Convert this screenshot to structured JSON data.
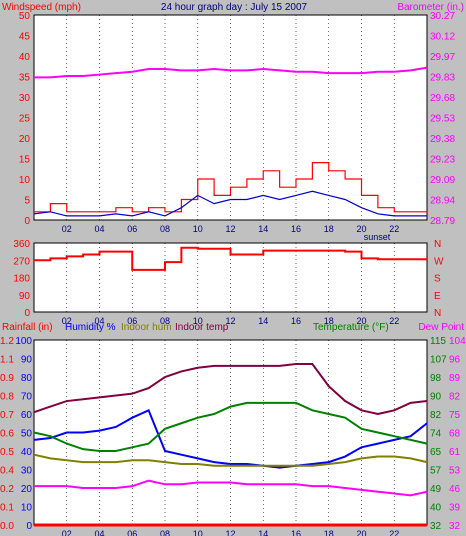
{
  "title": "24 hour graph day : July 15 2007",
  "legend": {
    "windspeed": "Windspeed (mph)",
    "barometer": "Barometer (in.)",
    "rainfall": "Rainfall (in)",
    "humidity": "Humidity %",
    "indoor_hum": "Indoor hum",
    "indoor_temp": "Indoor temp",
    "temperature": "Temperature (°F)",
    "dew_point": "Dew Point",
    "sunset": "sunset"
  },
  "colors": {
    "wind_speed": "#ff0000",
    "wind_avg": "#0000cc",
    "barometer": "#ff00ff",
    "wind_dir": "#ff0000",
    "humidity": "#0000ff",
    "indoor_hum": "#808000",
    "indoor_temp": "#800040",
    "temperature": "#008000",
    "dew_point": "#ff00ff",
    "rainfall": "#ff0000"
  },
  "x_ticks": [
    "02",
    "04",
    "06",
    "08",
    "10",
    "12",
    "14",
    "16",
    "18",
    "20",
    "22"
  ],
  "chart_data": [
    {
      "type": "line",
      "name": "wind_barometer",
      "x": [
        0,
        1,
        2,
        3,
        4,
        5,
        6,
        7,
        8,
        9,
        10,
        11,
        12,
        13,
        14,
        15,
        16,
        17,
        18,
        19,
        20,
        21,
        22,
        23,
        24
      ],
      "y_left_ticks": [
        "0",
        "5",
        "10",
        "15",
        "20",
        "25",
        "30",
        "35",
        "40",
        "45",
        "50"
      ],
      "y_right_ticks": [
        "28.79",
        "28.94",
        "29.09",
        "29.23",
        "29.38",
        "29.53",
        "29.68",
        "29.83",
        "29.97",
        "30.12",
        "30.27"
      ],
      "ylim_left": [
        0,
        50
      ],
      "ylim_right": [
        28.79,
        30.27
      ],
      "series": [
        {
          "name": "Windspeed (mph)",
          "axis": "left",
          "values": [
            2,
            4,
            2,
            2,
            2,
            3,
            2,
            3,
            2,
            5,
            10,
            6,
            8,
            10,
            12,
            8,
            10,
            14,
            12,
            10,
            6,
            3,
            2,
            2,
            2
          ]
        },
        {
          "name": "",
          "axis": "left",
          "values": [
            1.5,
            2,
            1,
            1,
            1,
            1.5,
            1,
            2,
            1,
            3,
            6,
            4,
            5,
            5,
            6,
            5,
            6,
            7,
            6,
            5,
            3,
            1.5,
            1,
            1,
            1
          ]
        },
        {
          "name": "Barometer (in.)",
          "axis": "right",
          "values": [
            29.82,
            29.82,
            29.83,
            29.83,
            29.84,
            29.85,
            29.86,
            29.88,
            29.88,
            29.87,
            29.87,
            29.88,
            29.87,
            29.87,
            29.88,
            29.87,
            29.86,
            29.86,
            29.85,
            29.85,
            29.85,
            29.86,
            29.86,
            29.87,
            29.89
          ]
        }
      ]
    },
    {
      "type": "line",
      "name": "wind_direction",
      "x": [
        0,
        1,
        2,
        3,
        4,
        5,
        6,
        7,
        8,
        9,
        10,
        11,
        12,
        13,
        14,
        15,
        16,
        17,
        18,
        19,
        20,
        21,
        22,
        23,
        24
      ],
      "y_ticks": [
        "360",
        "270",
        "180",
        "90",
        "0"
      ],
      "y_right_ticks": [
        "N",
        "W",
        "S",
        "E",
        "N"
      ],
      "ylim": [
        0,
        360
      ],
      "series": [
        {
          "name": "Wind direction",
          "values": [
            270,
            280,
            290,
            300,
            315,
            315,
            220,
            220,
            260,
            335,
            330,
            330,
            300,
            300,
            320,
            320,
            320,
            320,
            320,
            315,
            280,
            275,
            275,
            275,
            275
          ]
        }
      ]
    },
    {
      "type": "line",
      "name": "temp_humidity",
      "x": [
        0,
        1,
        2,
        3,
        4,
        5,
        6,
        7,
        8,
        9,
        10,
        11,
        12,
        13,
        14,
        15,
        16,
        17,
        18,
        19,
        20,
        21,
        22,
        23,
        24
      ],
      "y_left_ticks": [
        "0",
        "10",
        "20",
        "30",
        "40",
        "50",
        "60",
        "70",
        "80",
        "90",
        "100"
      ],
      "y_rain_ticks": [
        "0.0",
        "0.1",
        "0.2",
        "0.4",
        "0.5",
        "0.6",
        "0.7",
        "0.8",
        "0.9",
        "1.1",
        "1.2"
      ],
      "y_right_ticks_temp": [
        "32",
        "40",
        "49",
        "57",
        "65",
        "74",
        "82",
        "90",
        "98",
        "107",
        "115"
      ],
      "y_right_ticks_dew": [
        "32",
        "39",
        "46",
        "53",
        "61",
        "68",
        "75",
        "82",
        "89",
        "96",
        "104"
      ],
      "ylim_left": [
        0,
        100
      ],
      "series": [
        {
          "name": "Humidity %",
          "values": [
            46,
            47,
            50,
            50,
            51,
            53,
            58,
            62,
            40,
            38,
            36,
            34,
            33,
            33,
            32,
            31,
            32,
            33,
            34,
            37,
            42,
            44,
            46,
            48,
            55
          ]
        },
        {
          "name": "Indoor hum",
          "values": [
            38,
            36,
            35,
            34,
            34,
            34,
            35,
            35,
            34,
            33,
            33,
            32,
            32,
            32,
            32,
            32,
            32,
            32,
            33,
            34,
            36,
            37,
            37,
            36,
            34
          ]
        },
        {
          "name": "Indoor temp",
          "values": [
            61,
            64,
            67,
            68,
            69,
            70,
            71,
            74,
            80,
            83,
            85,
            86,
            86,
            86,
            86,
            86,
            87,
            87,
            75,
            67,
            62,
            60,
            62,
            66,
            67
          ]
        },
        {
          "name": "Temperature (°F)",
          "values": [
            50,
            48,
            44,
            41,
            40,
            40,
            42,
            44,
            52,
            55,
            58,
            60,
            64,
            66,
            66,
            66,
            66,
            62,
            60,
            58,
            52,
            50,
            48,
            46,
            44
          ]
        },
        {
          "name": "Dew Point",
          "values": [
            21,
            21,
            21,
            20,
            20,
            20,
            21,
            24,
            22,
            22,
            23,
            23,
            23,
            22,
            22,
            22,
            22,
            21,
            21,
            20,
            19,
            18,
            17,
            16,
            18
          ]
        },
        {
          "name": "Rainfall (in)",
          "values": [
            0,
            0,
            0,
            0,
            0,
            0,
            0,
            0,
            0,
            0,
            0,
            0,
            0,
            0,
            0,
            0,
            0,
            0,
            0,
            0,
            0,
            0,
            0,
            0,
            0
          ]
        }
      ]
    }
  ]
}
